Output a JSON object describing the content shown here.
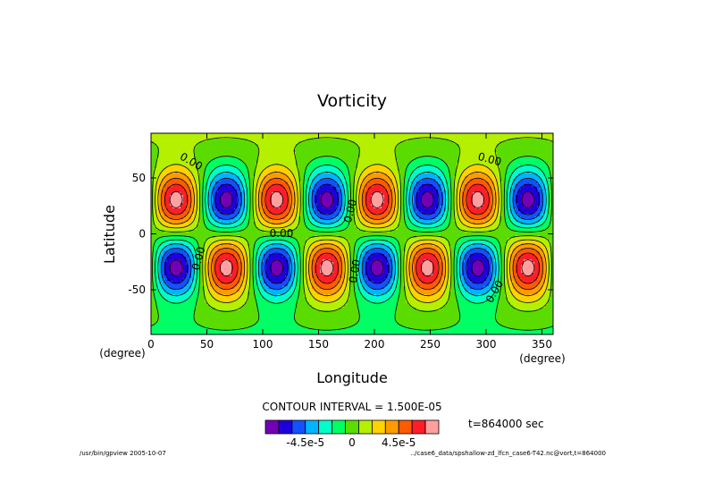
{
  "chart_data": {
    "type": "heatmap",
    "title": "Vorticity",
    "xlabel": "Longitude",
    "ylabel": "Latitude",
    "x_unit": "(degree)",
    "y_unit": "(degree)",
    "xlim": [
      0,
      360
    ],
    "ylim": [
      -90,
      90
    ],
    "x_ticks": [
      0,
      50,
      100,
      150,
      200,
      250,
      300,
      350
    ],
    "y_ticks": [
      -50,
      0,
      50
    ],
    "contour_interval_text": "CONTOUR INTERVAL = 1.500E-05",
    "contour_labels": [
      "0.00",
      "0.00",
      "0.00",
      "0.00",
      "0.00",
      "0.00",
      "0.00",
      "0.00"
    ],
    "time_text": "t=864000 sec",
    "field": {
      "wavenumber": 4,
      "max_value": 9e-05,
      "lat_peak": 30,
      "lat_halfwidth": 27,
      "lon_phase": 22.5,
      "polar_offset": 1e-05
    },
    "colorbar": {
      "colors": [
        "#7300b4",
        "#1e00dc",
        "#1450ff",
        "#00b4ff",
        "#00ffc8",
        "#00ff64",
        "#5adc00",
        "#b4f000",
        "#ffd200",
        "#ff9b00",
        "#ff5a00",
        "#ff1e28",
        "#ffa0a0"
      ],
      "tick_labels": [
        "-4.5e-5",
        "0",
        "4.5e-5"
      ]
    },
    "footer_left": "/usr/bin/gpview  2005-10-07",
    "footer_right": "../case6_data/spshallow-zd_lfcn_case6-T42.nc@vort,t=864000"
  }
}
